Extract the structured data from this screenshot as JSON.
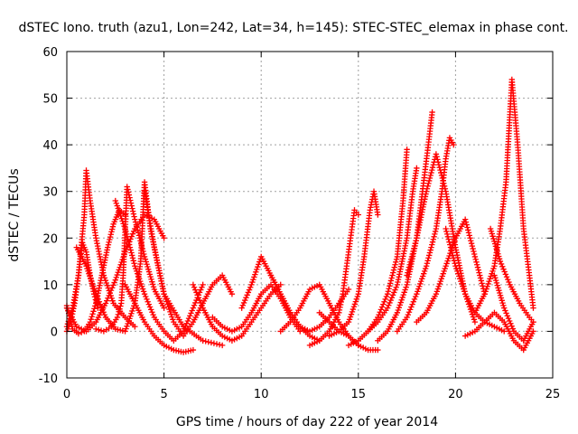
{
  "chart_data": {
    "type": "scatter",
    "title": "dSTEC Iono. truth (azu1, Lon=242, Lat=34, h=145): STEC-STEC_elemax in phase cont.",
    "xlabel": "GPS time / hours of day 222 of year 2014",
    "ylabel": "dSTEC  / TECUs",
    "xlim": [
      0,
      25
    ],
    "ylim": [
      -10,
      60
    ],
    "xticks": [
      0,
      5,
      10,
      15,
      20,
      25
    ],
    "yticks": [
      -10,
      0,
      10,
      20,
      30,
      40,
      50,
      60
    ],
    "grid": true,
    "marker": "+",
    "color": "#ff0000",
    "series": [
      {
        "x": [
          0.0,
          0.3,
          0.6,
          0.9,
          1.2,
          1.5,
          1.8,
          2.1,
          2.4,
          2.7,
          3.0
        ],
        "y": [
          5.5,
          0.5,
          -0.5,
          0.0,
          2.0,
          6.0,
          12.0,
          18.0,
          23.0,
          26.0,
          25.0
        ]
      },
      {
        "x": [
          0.0,
          0.2,
          0.4,
          0.6,
          0.8,
          1.0,
          1.2,
          1.4,
          1.6
        ],
        "y": [
          0.0,
          2.0,
          6.0,
          12.0,
          19.0,
          17.0,
          12.0,
          8.0,
          5.0
        ]
      },
      {
        "x": [
          0.0,
          0.3,
          0.6,
          0.9,
          1.0,
          1.2,
          1.5,
          1.9,
          2.4,
          3.0,
          3.5
        ],
        "y": [
          1.0,
          5.0,
          12.0,
          25.0,
          34.5,
          28.0,
          20.0,
          12.0,
          6.0,
          3.0,
          1.0
        ]
      },
      {
        "x": [
          0.0,
          0.5,
          1.0,
          1.5,
          2.0,
          2.5,
          3.0,
          3.5,
          4.0,
          4.5,
          5.0
        ],
        "y": [
          5.0,
          1.0,
          0.0,
          2.0,
          6.0,
          11.0,
          17.0,
          22.0,
          25.0,
          24.0,
          20.0
        ]
      },
      {
        "x": [
          1.5,
          1.9,
          2.3,
          2.6,
          2.8,
          2.9,
          3.1,
          3.5,
          4.0,
          4.5,
          5.0
        ],
        "y": [
          0.5,
          0.0,
          1.0,
          3.0,
          6.0,
          12.0,
          31.0,
          24.0,
          16.0,
          9.0,
          5.0
        ]
      },
      {
        "x": [
          0.5,
          1.0,
          1.5,
          2.0,
          2.5,
          3.0,
          3.5,
          3.8,
          4.0,
          4.3,
          5.0,
          6.0,
          7.0,
          8.0
        ],
        "y": [
          18.0,
          14.0,
          8.0,
          3.0,
          0.5,
          0.0,
          6.0,
          15.0,
          32.0,
          22.0,
          8.0,
          1.0,
          -2.0,
          -3.0
        ]
      },
      {
        "x": [
          3.0,
          3.5,
          4.0,
          4.5,
          5.0,
          5.5,
          6.0,
          6.5
        ],
        "y": [
          10.0,
          6.0,
          2.0,
          -1.0,
          -3.0,
          -4.0,
          -4.5,
          -4.0
        ]
      },
      {
        "x": [
          2.5,
          3.0,
          3.5,
          4.0,
          4.5,
          5.0,
          5.5,
          6.0,
          6.5,
          7.0
        ],
        "y": [
          28.0,
          22.0,
          14.0,
          8.0,
          3.0,
          0.0,
          -2.0,
          0.0,
          5.0,
          10.0
        ]
      },
      {
        "x": [
          4.0,
          4.5,
          5.0,
          5.5,
          6.0,
          6.5,
          7.0,
          7.5,
          8.0,
          8.5
        ],
        "y": [
          30.0,
          18.0,
          8.0,
          2.0,
          -1.0,
          2.0,
          6.0,
          10.0,
          12.0,
          8.0
        ]
      },
      {
        "x": [
          6.5,
          7.0,
          7.5,
          8.0,
          8.5,
          9.0,
          9.5,
          10.0,
          10.5,
          11.0
        ],
        "y": [
          10.0,
          5.0,
          1.0,
          -1.0,
          -2.0,
          -1.0,
          2.0,
          5.0,
          8.0,
          10.0
        ]
      },
      {
        "x": [
          7.5,
          8.0,
          8.5,
          9.0,
          9.5,
          10.0,
          10.5,
          11.0,
          11.5,
          12.0
        ],
        "y": [
          3.0,
          1.0,
          0.0,
          1.0,
          4.0,
          8.0,
          10.0,
          7.0,
          3.0,
          0.0
        ]
      },
      {
        "x": [
          9.0,
          9.5,
          10.0,
          10.5,
          11.0,
          11.5,
          12.0,
          12.5,
          13.0
        ],
        "y": [
          5.0,
          10.0,
          16.0,
          12.0,
          8.0,
          4.0,
          1.0,
          -1.0,
          -2.0
        ]
      },
      {
        "x": [
          10.5,
          11.0,
          11.5,
          12.0,
          12.5,
          13.0,
          13.5,
          14.0,
          14.5
        ],
        "y": [
          12.0,
          8.0,
          4.0,
          1.0,
          0.0,
          1.0,
          3.0,
          6.0,
          9.0
        ]
      },
      {
        "x": [
          11.0,
          11.5,
          12.0,
          12.5,
          13.0,
          13.5,
          14.0,
          14.5,
          15.0
        ],
        "y": [
          0.0,
          2.0,
          5.0,
          9.0,
          10.0,
          6.0,
          2.0,
          -1.0,
          -3.0
        ]
      },
      {
        "x": [
          13.0,
          13.5,
          14.0,
          14.5,
          15.0,
          15.5,
          16.0
        ],
        "y": [
          4.0,
          2.0,
          0.0,
          -1.0,
          -3.0,
          -4.0,
          -4.0
        ]
      },
      {
        "x": [
          12.5,
          13.0,
          13.5,
          14.0,
          14.2,
          14.4,
          14.6,
          14.8,
          15.0
        ],
        "y": [
          -3.0,
          -2.0,
          0.0,
          4.0,
          8.0,
          14.0,
          20.0,
          26.0,
          25.0
        ]
      },
      {
        "x": [
          13.5,
          14.0,
          14.5,
          15.0,
          15.3,
          15.6,
          15.8,
          16.0
        ],
        "y": [
          -1.0,
          0.0,
          2.0,
          8.0,
          16.0,
          26.0,
          30.0,
          25.0
        ]
      },
      {
        "x": [
          14.5,
          15.0,
          15.5,
          16.0,
          16.5,
          17.0,
          17.3,
          17.5
        ],
        "y": [
          -3.0,
          -2.0,
          0.0,
          3.0,
          8.0,
          16.0,
          28.0,
          39.0
        ]
      },
      {
        "x": [
          15.5,
          16.0,
          16.5,
          17.0,
          17.5,
          17.8,
          18.0
        ],
        "y": [
          0.0,
          2.0,
          5.0,
          10.0,
          20.0,
          30.0,
          35.0
        ]
      },
      {
        "x": [
          16.0,
          16.5,
          17.0,
          17.5,
          18.0,
          18.3,
          18.6,
          18.8
        ],
        "y": [
          -2.0,
          0.0,
          4.0,
          10.0,
          20.0,
          30.0,
          40.0,
          47.0
        ]
      },
      {
        "x": [
          17.0,
          17.5,
          18.0,
          18.5,
          19.0,
          19.3,
          19.5,
          19.7,
          19.9
        ],
        "y": [
          0.0,
          3.0,
          8.0,
          14.0,
          22.0,
          30.0,
          37.0,
          41.5,
          40.0
        ]
      },
      {
        "x": [
          17.5,
          18.0,
          18.5,
          19.0,
          19.5,
          20.0,
          20.5,
          21.0
        ],
        "y": [
          12.0,
          20.0,
          30.0,
          38.0,
          30.0,
          18.0,
          8.0,
          2.0
        ]
      },
      {
        "x": [
          18.0,
          18.5,
          19.0,
          19.5,
          20.0,
          20.5,
          21.0,
          21.5
        ],
        "y": [
          2.0,
          4.0,
          8.0,
          14.0,
          20.0,
          24.0,
          16.0,
          8.0
        ]
      },
      {
        "x": [
          19.5,
          20.0,
          20.5,
          21.0,
          21.5,
          22.0,
          22.5
        ],
        "y": [
          22.0,
          14.0,
          8.0,
          4.0,
          2.0,
          1.0,
          0.0
        ]
      },
      {
        "x": [
          21.0,
          21.5,
          22.0,
          22.3,
          22.6,
          22.9,
          23.2,
          23.5,
          23.8,
          24.0
        ],
        "y": [
          4.0,
          8.0,
          14.0,
          22.0,
          32.0,
          54.0,
          40.0,
          22.0,
          12.0,
          5.0
        ]
      },
      {
        "x": [
          21.8,
          22.3,
          22.8,
          23.3,
          23.8,
          24.0
        ],
        "y": [
          22.0,
          15.0,
          10.0,
          6.0,
          3.0,
          2.0
        ]
      },
      {
        "x": [
          20.5,
          21.0,
          21.5,
          22.0,
          22.5,
          23.0,
          23.5,
          24.0
        ],
        "y": [
          -1.0,
          0.0,
          2.0,
          4.0,
          2.0,
          -2.0,
          -4.0,
          0.0
        ]
      },
      {
        "x": [
          22.0,
          22.5,
          23.0,
          23.5,
          24.0
        ],
        "y": [
          12.0,
          5.0,
          0.0,
          -2.0,
          2.0
        ]
      }
    ]
  }
}
